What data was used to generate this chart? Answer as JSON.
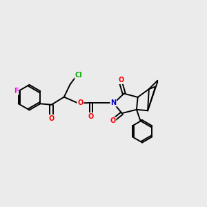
{
  "background_color": "#ebebeb",
  "bond_color": "#000000",
  "bond_width": 1.4,
  "atom_colors": {
    "F": "#ff00ff",
    "O": "#ff0000",
    "N": "#0000cd",
    "Cl": "#00aa00",
    "C": "#000000"
  },
  "font_size": 7.0,
  "fig_width": 3.0,
  "fig_height": 3.0,
  "dpi": 100
}
